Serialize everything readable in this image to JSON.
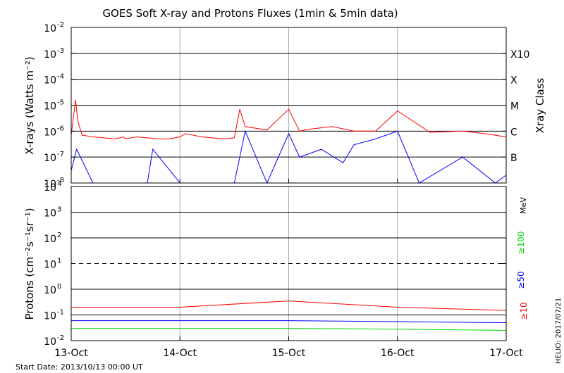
{
  "chart_data": [
    {
      "type": "line",
      "title": "GOES Soft X-ray and Protons Fluxes   (1min & 5min data)",
      "xlabel": "",
      "ylabel": "X-rays (Watts m⁻²)",
      "y_scale": "log",
      "ylim": [
        1e-08,
        0.01
      ],
      "x_ticks": [
        "13-Oct",
        "14-Oct",
        "15-Oct",
        "16-Oct",
        "17-Oct"
      ],
      "y_tick_labels": [
        {
          "base": "10",
          "exp": "-2"
        },
        {
          "base": "10",
          "exp": "-3"
        },
        {
          "base": "10",
          "exp": "-4"
        },
        {
          "base": "10",
          "exp": "-5"
        },
        {
          "base": "10",
          "exp": "-6"
        },
        {
          "base": "10",
          "exp": "-7"
        },
        {
          "base": "10",
          "exp": "-8"
        }
      ],
      "xray_class_title": "Xray Class",
      "xray_classes": [
        "X10",
        "X",
        "M",
        "C",
        "B"
      ],
      "grid": true,
      "series": [
        {
          "color": "#ff0000",
          "x": [
            0.0,
            0.04,
            0.06,
            0.1,
            0.2,
            0.3,
            0.4,
            0.48,
            0.5,
            0.6,
            0.7,
            0.8,
            0.9,
            1.0,
            1.05,
            1.2,
            1.4,
            1.5,
            1.55,
            1.6,
            1.8,
            2.0,
            2.1,
            2.2,
            2.4,
            2.6,
            2.8,
            3.0,
            3.3,
            3.6,
            3.8,
            4.0
          ],
          "y": [
            7e-07,
            1.6e-05,
            2.5e-06,
            7e-07,
            6e-07,
            5.5e-07,
            5e-07,
            6e-07,
            5e-07,
            6e-07,
            5.5e-07,
            5e-07,
            5e-07,
            6e-07,
            8e-07,
            6e-07,
            5e-07,
            5.5e-07,
            7e-06,
            1.5e-06,
            1.1e-06,
            7e-06,
            1e-06,
            1.2e-06,
            1.5e-06,
            1e-06,
            1e-06,
            6e-06,
            9e-07,
            1e-06,
            8e-07,
            6e-07
          ]
        },
        {
          "color": "#0000ff",
          "x": [
            0.0,
            0.05,
            0.2,
            0.4,
            0.7,
            0.75,
            1.0,
            1.5,
            1.6,
            1.8,
            2.0,
            2.1,
            2.3,
            2.5,
            2.6,
            2.8,
            3.0,
            3.2,
            3.6,
            3.9,
            4.0
          ],
          "y": [
            3e-08,
            2e-07,
            1e-08,
            1e-08,
            1e-08,
            2e-07,
            1e-08,
            1e-08,
            1e-06,
            1e-08,
            8e-07,
            1e-07,
            2e-07,
            6e-08,
            3e-07,
            5e-07,
            1e-06,
            1e-08,
            1e-07,
            1e-08,
            2e-08
          ]
        }
      ]
    },
    {
      "type": "line",
      "xlabel": "",
      "ylabel": "Protons (cm⁻²s⁻¹sr⁻¹)",
      "y_scale": "log",
      "ylim": [
        0.01,
        10000
      ],
      "x_ticks": [
        "13-Oct",
        "14-Oct",
        "15-Oct",
        "16-Oct",
        "17-Oct"
      ],
      "y_tick_labels": [
        {
          "base": "10",
          "exp": "4"
        },
        {
          "base": "10",
          "exp": "3"
        },
        {
          "base": "10",
          "exp": "2"
        },
        {
          "base": "10",
          "exp": "1"
        },
        {
          "base": "10",
          "exp": "0"
        },
        {
          "base": "10",
          "exp": "-1"
        },
        {
          "base": "10",
          "exp": "-2"
        }
      ],
      "unit_label": "MeV",
      "dashed_threshold": 10,
      "grid": true,
      "series": [
        {
          "name": "≥10",
          "color": "#ff0000",
          "x": [
            0.0,
            1.0,
            2.0,
            3.0,
            4.0
          ],
          "y": [
            0.2,
            0.2,
            0.35,
            0.2,
            0.15
          ]
        },
        {
          "name": "≥50",
          "color": "#0000ff",
          "x": [
            0.0,
            1.0,
            2.0,
            3.0,
            4.0
          ],
          "y": [
            0.06,
            0.06,
            0.06,
            0.055,
            0.05
          ]
        },
        {
          "name": "≥100",
          "color": "#00dd00",
          "x": [
            0.0,
            1.0,
            2.0,
            3.0,
            4.0
          ],
          "y": [
            0.03,
            0.03,
            0.03,
            0.028,
            0.025
          ]
        }
      ]
    }
  ],
  "footer": {
    "start_date": "Start Date: 2013/10/13 00:00 UT",
    "credit": "HELIO: 2017/07/21"
  }
}
